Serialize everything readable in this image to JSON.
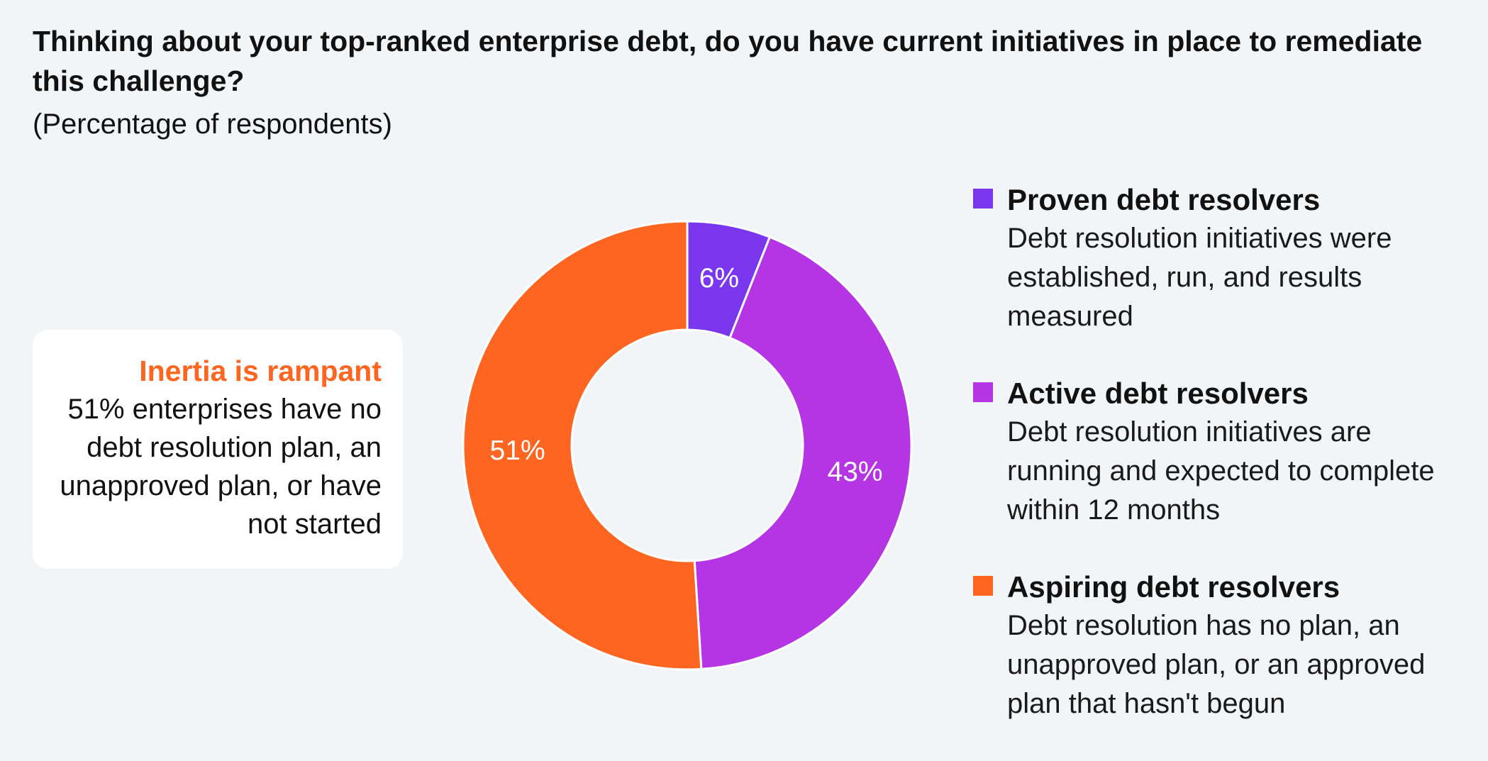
{
  "header": {
    "title": "Thinking about your top-ranked enterprise debt, do you have current initiatives in place to remediate this challenge?",
    "subtitle": "(Percentage of respondents)"
  },
  "callout": {
    "heading": "Inertia is rampant",
    "body": "51% enterprises have no debt resolution plan, an unapproved plan, or have not started"
  },
  "legend": {
    "items": [
      {
        "title": "Proven debt resolvers",
        "description": "Debt resolution initiatives were established, run, and results measured",
        "color": "#7a37ee"
      },
      {
        "title": "Active debt resolvers",
        "description": "Debt resolution initiatives are running and expected to complete within 12 months",
        "color": "#b535e4"
      },
      {
        "title": "Aspiring debt resolvers",
        "description": "Debt resolution has no plan, an unapproved plan, or an approved plan that hasn't begun",
        "color": "#fd6520"
      }
    ]
  },
  "chart_data": {
    "type": "pie",
    "variant": "donut",
    "categories": [
      "Proven debt resolvers",
      "Active debt resolvers",
      "Aspiring debt resolvers"
    ],
    "values": [
      6,
      43,
      51
    ],
    "labels": [
      "6%",
      "43%",
      "51%"
    ],
    "colors": [
      "#7a37ee",
      "#b535e4",
      "#fd6520"
    ],
    "start": "top, clockwise",
    "legend_position": "right",
    "unit": "%"
  }
}
